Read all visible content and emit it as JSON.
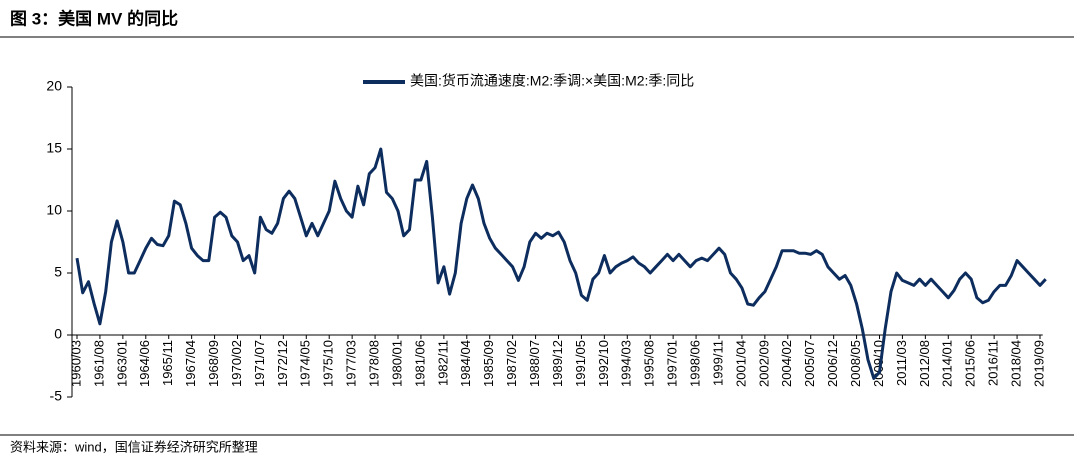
{
  "chart_data": {
    "type": "line",
    "title": "图 3：美国 MV 的同比",
    "source": "资料来源：wind，国信证券经济研究所整理",
    "categories": [
      "1960/03",
      null,
      null,
      null,
      "1961/08",
      null,
      null,
      null,
      "1963/01",
      null,
      null,
      null,
      "1964/06",
      null,
      null,
      null,
      "1965/11",
      null,
      null,
      null,
      "1967/04",
      null,
      null,
      null,
      "1968/09",
      null,
      null,
      null,
      "1970/02",
      null,
      null,
      null,
      "1971/07",
      null,
      null,
      null,
      "1972/12",
      null,
      null,
      null,
      "1974/05",
      null,
      null,
      null,
      "1975/10",
      null,
      null,
      null,
      "1977/03",
      null,
      null,
      null,
      "1978/08",
      null,
      null,
      null,
      "1980/01",
      null,
      null,
      null,
      "1981/06",
      null,
      null,
      null,
      "1982/11",
      null,
      null,
      null,
      "1984/04",
      null,
      null,
      null,
      "1985/09",
      null,
      null,
      null,
      "1987/02",
      null,
      null,
      null,
      "1988/07",
      null,
      null,
      null,
      "1989/12",
      null,
      null,
      null,
      "1991/05",
      null,
      null,
      null,
      "1992/10",
      null,
      null,
      null,
      "1994/03",
      null,
      null,
      null,
      "1995/08",
      null,
      null,
      null,
      "1997/01",
      null,
      null,
      null,
      "1998/06",
      null,
      null,
      null,
      "1999/11",
      null,
      null,
      null,
      "2001/04",
      null,
      null,
      null,
      "2002/09",
      null,
      null,
      null,
      "2004/02",
      null,
      null,
      null,
      "2005/07",
      null,
      null,
      null,
      "2006/12",
      null,
      null,
      null,
      "2008/05",
      null,
      null,
      null,
      "2009/10",
      null,
      null,
      null,
      "2011/03",
      null,
      null,
      null,
      "2012/08",
      null,
      null,
      null,
      "2014/01",
      null,
      null,
      null,
      "2015/06",
      null,
      null,
      null,
      "2016/11",
      null,
      null,
      null,
      "2018/04",
      null,
      null,
      null,
      "2019/09",
      null
    ],
    "series": [
      {
        "name": "美国:货币流通速度:M2:季调:×美国:M2:季:同比",
        "color": "#0d2d5e",
        "values": [
          6.2,
          3.4,
          4.3,
          2.5,
          0.9,
          3.5,
          7.5,
          9.2,
          7.5,
          5.0,
          5.0,
          6.0,
          7.0,
          7.8,
          7.3,
          7.2,
          8.0,
          10.8,
          10.5,
          9.0,
          7.0,
          6.4,
          6.0,
          6.0,
          9.5,
          9.9,
          9.5,
          8.0,
          7.5,
          6.0,
          6.4,
          5.0,
          9.5,
          8.5,
          8.2,
          9.0,
          11.0,
          11.6,
          11.0,
          9.5,
          8.0,
          9.0,
          8.0,
          9.0,
          10.0,
          12.4,
          11.0,
          10.0,
          9.5,
          12.0,
          10.5,
          13.0,
          13.5,
          15.0,
          11.5,
          11.0,
          10.0,
          8.0,
          8.5,
          12.5,
          12.5,
          14.0,
          9.5,
          4.2,
          5.5,
          3.3,
          5.0,
          9.0,
          11.0,
          12.1,
          11.0,
          9.0,
          7.8,
          7.0,
          6.5,
          6.0,
          5.5,
          4.4,
          5.5,
          7.5,
          8.2,
          7.8,
          8.2,
          8.0,
          8.3,
          7.5,
          6.0,
          5.0,
          3.2,
          2.8,
          4.5,
          5.0,
          6.4,
          5.0,
          5.5,
          5.8,
          6.0,
          6.3,
          5.8,
          5.5,
          5.0,
          5.5,
          6.0,
          6.5,
          6.0,
          6.5,
          6.0,
          5.5,
          6.0,
          6.2,
          6.0,
          6.5,
          7.0,
          6.5,
          5.0,
          4.5,
          3.8,
          2.5,
          2.4,
          3.0,
          3.5,
          4.5,
          5.5,
          6.8,
          6.8,
          6.8,
          6.6,
          6.6,
          6.5,
          6.8,
          6.5,
          5.5,
          5.0,
          4.5,
          4.8,
          4.0,
          2.5,
          0.5,
          -2.0,
          -3.5,
          -3.0,
          0.5,
          3.5,
          5.0,
          4.4,
          4.2,
          4.0,
          4.5,
          4.0,
          4.5,
          4.0,
          3.5,
          3.0,
          3.6,
          4.5,
          5.0,
          4.5,
          3.0,
          2.6,
          2.8,
          3.5,
          4.0,
          4.0,
          4.8,
          6.0,
          5.5,
          5.0,
          4.5,
          4.0,
          4.5
        ]
      }
    ],
    "ylim": [
      -5,
      20
    ],
    "yticks": [
      -5,
      0,
      5,
      10,
      15,
      20
    ],
    "legend": "top"
  }
}
